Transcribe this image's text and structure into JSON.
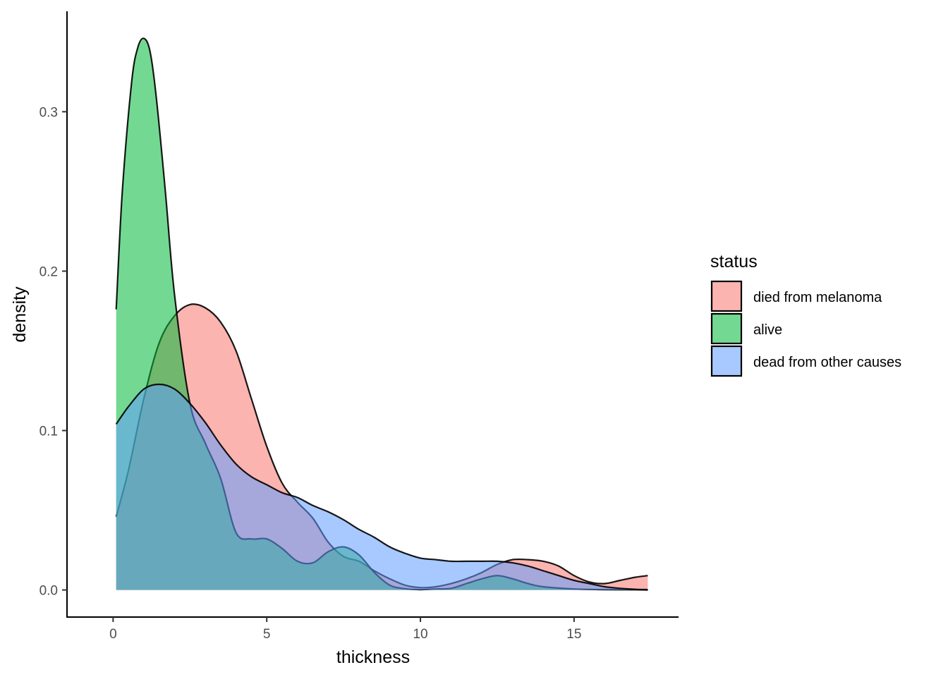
{
  "chart_data": {
    "type": "area",
    "subtype": "density",
    "title": "",
    "xlabel": "thickness",
    "ylabel": "density",
    "xlim": [
      -1.5,
      18.4
    ],
    "ylim": [
      -0.017,
      0.363
    ],
    "xticks": [
      0,
      5,
      10,
      15
    ],
    "yticks": [
      0.0,
      0.1,
      0.2,
      0.3
    ],
    "ytick_labels": [
      "0.0",
      "0.1",
      "0.2",
      "0.3"
    ],
    "grid": false,
    "legend": {
      "title": "status",
      "position": "right"
    },
    "series": [
      {
        "name": "died from melanoma",
        "color": "#F8766D",
        "x": [
          0.1,
          0.5,
          1,
          1.5,
          2,
          2.5,
          3,
          3.5,
          4,
          4.5,
          5,
          5.5,
          6,
          6.5,
          7,
          7.5,
          8,
          8.5,
          9,
          9.5,
          10,
          10.5,
          11,
          11.5,
          12,
          12.5,
          13,
          13.5,
          14,
          14.5,
          15,
          15.5,
          16,
          16.5,
          17,
          17.4
        ],
        "y": [
          0.046,
          0.075,
          0.12,
          0.155,
          0.172,
          0.179,
          0.177,
          0.168,
          0.15,
          0.12,
          0.09,
          0.067,
          0.055,
          0.045,
          0.03,
          0.021,
          0.018,
          0.012,
          0.007,
          0.003,
          0.0015,
          0.002,
          0.004,
          0.007,
          0.011,
          0.016,
          0.019,
          0.019,
          0.018,
          0.015,
          0.009,
          0.005,
          0.004,
          0.006,
          0.008,
          0.009
        ]
      },
      {
        "name": "alive",
        "color": "#00BA38",
        "x": [
          0.1,
          0.3,
          0.6,
          0.8,
          1,
          1.2,
          1.4,
          1.7,
          2,
          2.5,
          3,
          3.5,
          4,
          4.5,
          5,
          5.5,
          6,
          6.5,
          7,
          7.5,
          8,
          8.5,
          9,
          9.5,
          10,
          10.5,
          11,
          11.5,
          12,
          12.5,
          13,
          13.5,
          14,
          15,
          16,
          17,
          17.4
        ],
        "y": [
          0.176,
          0.25,
          0.318,
          0.34,
          0.346,
          0.338,
          0.31,
          0.25,
          0.185,
          0.117,
          0.092,
          0.07,
          0.036,
          0.032,
          0.032,
          0.026,
          0.018,
          0.017,
          0.024,
          0.027,
          0.022,
          0.011,
          0.003,
          0.0008,
          0.0002,
          0.0006,
          0.001,
          0.004,
          0.007,
          0.009,
          0.007,
          0.004,
          0.002,
          0.0006,
          0.0002,
          0.0001,
          0.0
        ]
      },
      {
        "name": "dead from other causes",
        "color": "#619CFF",
        "x": [
          0.1,
          0.5,
          1,
          1.5,
          2,
          2.5,
          3,
          3.5,
          4,
          4.5,
          5,
          5.5,
          6,
          6.5,
          7,
          7.5,
          8,
          8.5,
          9,
          9.5,
          10,
          10.5,
          11,
          11.5,
          12,
          12.5,
          13,
          13.5,
          14,
          14.5,
          15,
          15.5,
          16,
          16.5,
          17,
          17.4
        ],
        "y": [
          0.104,
          0.115,
          0.126,
          0.129,
          0.126,
          0.117,
          0.105,
          0.091,
          0.079,
          0.071,
          0.066,
          0.061,
          0.058,
          0.053,
          0.049,
          0.044,
          0.038,
          0.033,
          0.027,
          0.023,
          0.02,
          0.019,
          0.018,
          0.018,
          0.018,
          0.018,
          0.017,
          0.015,
          0.012,
          0.009,
          0.006,
          0.004,
          0.002,
          0.001,
          0.0004,
          0.0002
        ]
      }
    ]
  }
}
